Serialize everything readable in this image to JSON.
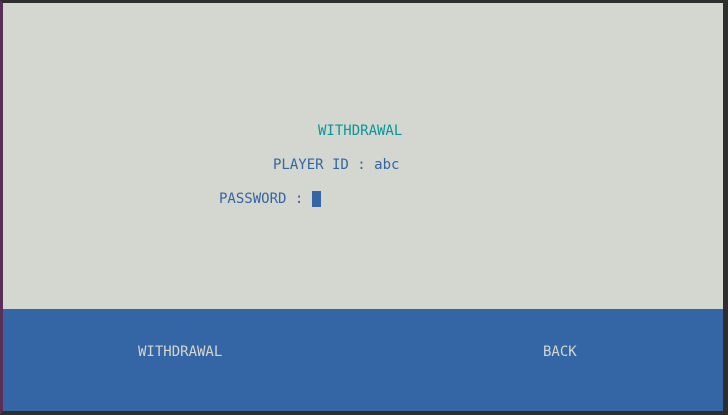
{
  "screen": {
    "title": "WITHDRAWAL",
    "player_id_label": "PLAYER ID : ",
    "player_id_value": "abc",
    "password_label": "PASSWORD : ",
    "password_value": ""
  },
  "footer": {
    "withdrawal_label": "WITHDRAWAL",
    "back_label": "BACK"
  },
  "colors": {
    "background": "#d3d7cf",
    "title": "#06989a",
    "text": "#3465a4",
    "footer_bg": "#3465a4",
    "footer_text": "#d3d7cf"
  }
}
